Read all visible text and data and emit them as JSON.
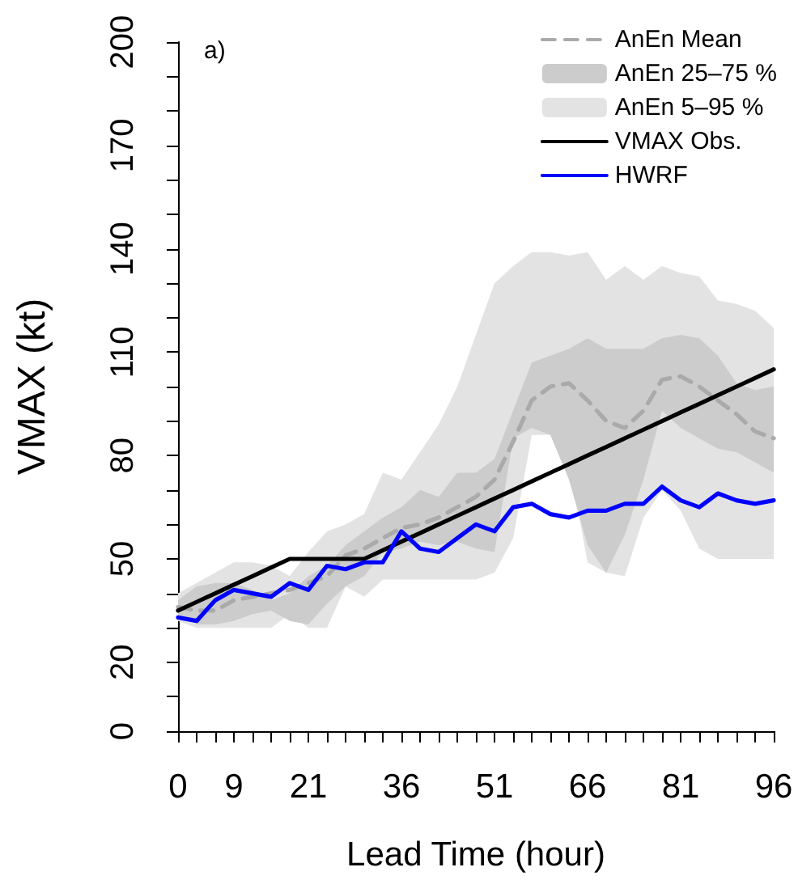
{
  "chart_data": {
    "type": "line",
    "xlabel": "Lead Time (hour)",
    "ylabel": "VMAX (kt)",
    "annotations": [
      "a)"
    ],
    "x": [
      0,
      3,
      6,
      9,
      12,
      15,
      18,
      21,
      24,
      27,
      30,
      33,
      36,
      39,
      42,
      45,
      48,
      51,
      54,
      57,
      60,
      63,
      66,
      69,
      72,
      75,
      78,
      81,
      84,
      87,
      90,
      93,
      96
    ],
    "xlim": [
      0,
      96
    ],
    "xticks": [
      0,
      {
        "value": 3,
        "label": null
      },
      {
        "value": 6,
        "label": null
      },
      9,
      {
        "value": 12,
        "label": null
      },
      {
        "value": 15,
        "label": null
      },
      {
        "value": 18,
        "label": null
      },
      21,
      {
        "value": 24,
        "label": null
      },
      {
        "value": 27,
        "label": null
      },
      {
        "value": 30,
        "label": null
      },
      {
        "value": 33,
        "label": null
      },
      36,
      {
        "value": 39,
        "label": null
      },
      {
        "value": 42,
        "label": null
      },
      {
        "value": 45,
        "label": null
      },
      {
        "value": 48,
        "label": null
      },
      51,
      {
        "value": 54,
        "label": null
      },
      {
        "value": 57,
        "label": null
      },
      {
        "value": 60,
        "label": null
      },
      {
        "value": 63,
        "label": null
      },
      66,
      {
        "value": 69,
        "label": null
      },
      {
        "value": 72,
        "label": null
      },
      {
        "value": 75,
        "label": null
      },
      {
        "value": 78,
        "label": null
      },
      81,
      {
        "value": 84,
        "label": null
      },
      {
        "value": 87,
        "label": null
      },
      {
        "value": 90,
        "label": null
      },
      {
        "value": 93,
        "label": null
      },
      96
    ],
    "ylim": [
      0,
      200
    ],
    "yticks": [
      0,
      {
        "value": 10,
        "label": null
      },
      20,
      {
        "value": 30,
        "label": null
      },
      {
        "value": 40,
        "label": null
      },
      50,
      {
        "value": 60,
        "label": null
      },
      {
        "value": 70,
        "label": null
      },
      80,
      {
        "value": 90,
        "label": null
      },
      {
        "value": 100,
        "label": null
      },
      110,
      {
        "value": 120,
        "label": null
      },
      {
        "value": 130,
        "label": null
      },
      140,
      {
        "value": 150,
        "label": null
      },
      {
        "value": 160,
        "label": null
      },
      170,
      {
        "value": 180,
        "label": null
      },
      {
        "value": 190,
        "label": null
      },
      200
    ],
    "grid": false,
    "legend": "top right",
    "marker": "none",
    "series": [
      {
        "name": "AnEn Mean",
        "color": "#aaaaaa",
        "line_style": "dashed",
        "values": [
          36,
          35,
          35,
          38,
          39,
          40,
          41,
          43,
          45,
          51,
          53,
          56,
          59,
          60,
          62,
          65,
          68,
          73,
          84,
          96,
          100,
          101,
          96,
          90,
          88,
          93,
          102,
          103,
          100,
          96,
          92,
          87,
          85
        ]
      },
      {
        "name": "AnEn 25–75 %",
        "type": "area",
        "color": "#cccccc",
        "values": [
          null,
          null,
          null,
          null,
          null,
          null,
          null,
          null,
          null,
          null,
          null,
          null,
          null,
          null,
          null,
          null,
          null,
          null,
          null,
          null,
          null,
          null,
          null,
          null,
          null,
          null,
          null,
          null,
          null,
          null,
          null,
          null,
          null
        ],
        "lower": [
          34,
          31,
          31,
          32,
          34,
          35,
          32,
          31,
          37,
          42,
          45,
          52,
          53,
          55,
          54,
          55,
          53,
          52,
          85,
          88,
          86,
          73,
          54,
          46,
          57,
          73,
          93,
          88,
          85,
          82,
          81,
          78,
          75
        ],
        "upper": [
          38,
          42,
          43,
          43,
          41,
          38,
          40,
          45,
          48,
          54,
          58,
          62,
          65,
          70,
          68,
          75,
          75,
          79,
          93,
          107,
          109,
          111,
          114,
          111,
          111,
          111,
          114,
          115,
          114,
          109,
          101,
          99,
          100
        ]
      },
      {
        "name": "AnEn 5–95 %",
        "type": "area",
        "color": "#e3e3e3",
        "values": [
          null,
          null,
          null,
          null,
          null,
          null,
          null,
          null,
          null,
          null,
          null,
          null,
          null,
          null,
          null,
          null,
          null,
          null,
          null,
          null,
          null,
          null,
          null,
          null,
          null,
          null,
          null,
          null,
          null,
          null,
          null,
          null,
          null
        ],
        "lower": [
          32,
          30,
          30,
          30,
          30,
          30,
          34,
          30,
          30,
          42,
          39,
          44,
          44,
          44,
          44,
          44,
          44,
          46,
          56,
          86,
          86,
          78,
          49,
          46,
          45,
          62,
          70,
          64,
          53,
          50,
          50,
          50,
          50
        ],
        "upper": [
          40,
          43,
          46,
          49,
          49,
          48,
          45,
          52,
          58,
          60,
          63,
          75,
          73,
          81,
          89,
          100,
          115,
          130,
          135,
          139,
          139,
          138,
          139,
          131,
          135,
          131,
          135,
          133,
          132,
          125,
          124,
          122,
          117
        ]
      },
      {
        "name": "VMAX Obs.",
        "color": "#000000",
        "line_style": "solid",
        "values": [
          35,
          37.5,
          40,
          42.5,
          45,
          47.5,
          50,
          50,
          50,
          50,
          50,
          52.5,
          55,
          57.5,
          60,
          62.5,
          65,
          67.5,
          70,
          72.5,
          75,
          77.5,
          80,
          82.5,
          85,
          87.5,
          90,
          92.5,
          95,
          97.5,
          100,
          102.5,
          105
        ]
      },
      {
        "name": "HWRF",
        "color": "#0000ff",
        "line_style": "solid",
        "values": [
          33,
          32,
          38,
          41,
          40,
          39,
          43,
          41,
          48,
          47,
          49,
          49,
          58,
          53,
          52,
          56,
          60,
          58,
          65,
          66,
          63,
          62,
          64,
          64,
          66,
          66,
          71,
          67,
          65,
          69,
          67,
          66,
          67
        ]
      }
    ]
  }
}
